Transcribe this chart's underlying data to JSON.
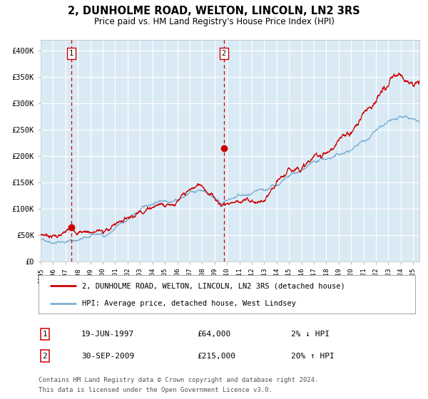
{
  "title": "2, DUNHOLME ROAD, WELTON, LINCOLN, LN2 3RS",
  "subtitle": "Price paid vs. HM Land Registry's House Price Index (HPI)",
  "title_fontsize": 10.5,
  "subtitle_fontsize": 8.5,
  "bg_color": "#daeaf5",
  "grid_color": "#ffffff",
  "hpi_color": "#7aaed4",
  "price_color": "#cc0000",
  "ylim": [
    0,
    420000
  ],
  "yticks": [
    0,
    50000,
    100000,
    150000,
    200000,
    250000,
    300000,
    350000,
    400000
  ],
  "ytick_labels": [
    "£0",
    "£50K",
    "£100K",
    "£150K",
    "£200K",
    "£250K",
    "£300K",
    "£350K",
    "£400K"
  ],
  "sale1_date": 1997.47,
  "sale1_price": 64000,
  "sale2_date": 2009.75,
  "sale2_price": 215000,
  "legend_line1": "2, DUNHOLME ROAD, WELTON, LINCOLN, LN2 3RS (detached house)",
  "legend_line2": "HPI: Average price, detached house, West Lindsey",
  "table_row1_num": "1",
  "table_row1_date": "19-JUN-1997",
  "table_row1_price": "£64,000",
  "table_row1_hpi": "2% ↓ HPI",
  "table_row2_num": "2",
  "table_row2_date": "30-SEP-2009",
  "table_row2_price": "£215,000",
  "table_row2_hpi": "20% ↑ HPI",
  "footnote1": "Contains HM Land Registry data © Crown copyright and database right 2024.",
  "footnote2": "This data is licensed under the Open Government Licence v3.0.",
  "xstart": 1995.0,
  "xend": 2025.5
}
